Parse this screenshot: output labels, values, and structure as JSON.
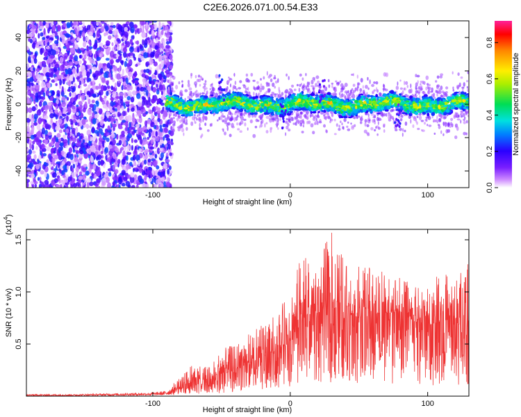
{
  "page": {
    "title": "C2E6.2026.071.00.54.E33"
  },
  "chart_data": [
    {
      "type": "heatmap",
      "title": "C2E6.2026.071.00.54.E33",
      "xlabel": "Height of straight line (km)",
      "ylabel": "Frequency (Hz)",
      "xlim": [
        -192,
        130
      ],
      "ylim": [
        -50,
        50
      ],
      "xticks": [
        -100,
        0,
        100
      ],
      "xtick_labels": [
        "-100",
        "0",
        "100"
      ],
      "yticks": [
        -40,
        -20,
        0,
        20,
        40
      ],
      "ytick_labels": [
        "-40",
        "-20",
        "0",
        "20",
        "40"
      ],
      "colorbar": {
        "label": "Normalized spectral amplitude",
        "range": [
          0,
          0.92
        ],
        "ticks": [
          0,
          0.2,
          0.4,
          0.6,
          0.8
        ],
        "tick_labels": [
          "0.0",
          "0.2",
          "0.4",
          "0.6",
          "0.8"
        ],
        "colormap": "rainbow"
      },
      "description_regions": [
        {
          "x_range": [
            -192,
            -90
          ],
          "pattern": "broadband noise",
          "amplitude": 0.15
        },
        {
          "x_range": [
            -90,
            130
          ],
          "pattern": "narrow band centered near 0 Hz",
          "band_halfwidth_hz": 6,
          "peak_amplitude": 0.9
        }
      ]
    },
    {
      "type": "line",
      "xlabel": "Height of straight line (km)",
      "ylabel": "SNR (10 * v/v)",
      "multiplier": "(x10",
      "multiplier_exp": "4",
      "multiplier_close": ")",
      "xlim": [
        -192,
        130
      ],
      "ylim": [
        0,
        1.6
      ],
      "xticks": [
        -100,
        0,
        100
      ],
      "xtick_labels": [
        "-100",
        "0",
        "100"
      ],
      "yticks": [
        0.5,
        1.0,
        1.5
      ],
      "ytick_labels": [
        "0.5",
        "1.0",
        "1.5"
      ],
      "series": [
        {
          "name": "SNR",
          "color": "#ee3333",
          "x": [
            -192,
            -160,
            -130,
            -100,
            -90,
            -80,
            -70,
            -60,
            -50,
            -40,
            -30,
            -20,
            -10,
            0,
            10,
            20,
            30,
            40,
            50,
            60,
            70,
            80,
            90,
            100,
            110,
            120,
            130
          ],
          "values": [
            0.01,
            0.01,
            0.015,
            0.02,
            0.03,
            0.08,
            0.18,
            0.12,
            0.2,
            0.25,
            0.3,
            0.35,
            0.45,
            0.5,
            0.75,
            0.8,
            0.85,
            0.8,
            0.75,
            0.78,
            0.8,
            0.8,
            0.72,
            0.68,
            0.72,
            0.68,
            0.7
          ],
          "peaks": [
            0.02,
            0.02,
            0.03,
            0.04,
            0.08,
            0.18,
            0.32,
            0.28,
            0.45,
            0.5,
            0.6,
            0.7,
            0.8,
            1.0,
            1.45,
            1.3,
            1.6,
            1.3,
            1.25,
            1.25,
            1.2,
            1.15,
            1.05,
            1.05,
            1.2,
            1.15,
            1.3
          ]
        }
      ]
    }
  ]
}
